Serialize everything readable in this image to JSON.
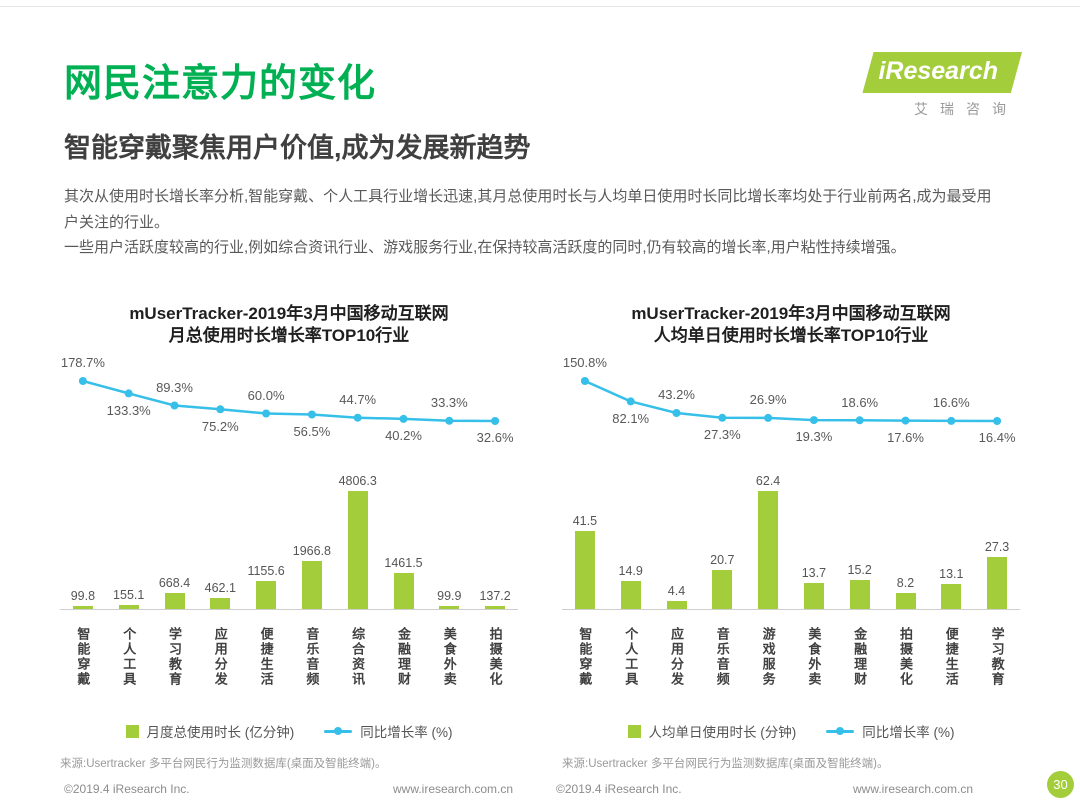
{
  "page": {
    "title": "网民注意力的变化",
    "subtitle": "智能穿戴聚焦用户价值,成为发展新趋势",
    "paragraphs": [
      "其次从使用时长增长率分析,智能穿戴、个人工具行业增长迅速,其月总使用时长与人均单日使用时长同比增长率均处于行业前两名,成为最受用户关注的行业。",
      "一些用户活跃度较高的行业,例如综合资讯行业、游戏服务行业,在保持较高活跃度的同时,仍有较高的增长率,用户粘性持续增强。"
    ],
    "page_number": "30"
  },
  "logo": {
    "brand": "iResearch",
    "brand_cn": "艾瑞咨询"
  },
  "colors": {
    "title_green": "#00B052",
    "bar_green": "#A3CD3A",
    "line_blue": "#36BFE8",
    "footer_gray": "#8c8c8c"
  },
  "footer": {
    "items": [
      "©2019.4 iResearch Inc.",
      "www.iresearch.com.cn",
      "©2019.4 iResearch Inc.",
      "www.iresearch.com.cn"
    ]
  },
  "chart_data": [
    {
      "type": "combo-bar-line",
      "title_line1": "mUserTracker-2019年3月中国移动互联网",
      "title_line2": "月总使用时长增长率TOP10行业",
      "categories": [
        "智能穿戴",
        "个人工具",
        "学习教育",
        "应用分发",
        "便捷生活",
        "音乐音频",
        "综合资讯",
        "金融理财",
        "美食外卖",
        "拍摄美化"
      ],
      "bar_series": {
        "name": "月度总使用时长 (亿分钟)",
        "values": [
          99.8,
          155.1,
          668.4,
          462.1,
          1155.6,
          1966.8,
          4806.3,
          1461.5,
          99.9,
          137.2
        ]
      },
      "line_series": {
        "name": "同比增长率 (%)",
        "values": [
          178.7,
          133.3,
          89.3,
          75.2,
          60.0,
          56.5,
          44.7,
          40.2,
          33.3,
          32.6
        ],
        "labels": [
          "178.7%",
          "133.3%",
          "89.3%",
          "75.2%",
          "60.0%",
          "56.5%",
          "44.7%",
          "40.2%",
          "33.3%",
          "32.6%"
        ]
      },
      "legend_position": "bottom",
      "grid": false,
      "source": "来源:Usertracker 多平台网民行为监测数据库(桌面及智能终端)。"
    },
    {
      "type": "combo-bar-line",
      "title_line1": "mUserTracker-2019年3月中国移动互联网",
      "title_line2": "人均单日使用时长增长率TOP10行业",
      "categories": [
        "智能穿戴",
        "个人工具",
        "应用分发",
        "音乐音频",
        "游戏服务",
        "美食外卖",
        "金融理财",
        "拍摄美化",
        "便捷生活",
        "学习教育"
      ],
      "bar_series": {
        "name": "人均单日使用时长 (分钟)",
        "values": [
          41.5,
          14.9,
          4.4,
          20.7,
          62.4,
          13.7,
          15.2,
          8.2,
          13.1,
          27.3
        ]
      },
      "line_series": {
        "name": "同比增长率 (%)",
        "values": [
          150.8,
          82.1,
          43.2,
          27.3,
          26.9,
          19.3,
          18.6,
          17.6,
          16.6,
          16.4
        ],
        "labels": [
          "150.8%",
          "82.1%",
          "43.2%",
          "27.3%",
          "26.9%",
          "19.3%",
          "18.6%",
          "17.6%",
          "16.6%",
          "16.4%"
        ]
      },
      "legend_position": "bottom",
      "grid": false,
      "source": "来源:Usertracker 多平台网民行为监测数据库(桌面及智能终端)。"
    }
  ]
}
